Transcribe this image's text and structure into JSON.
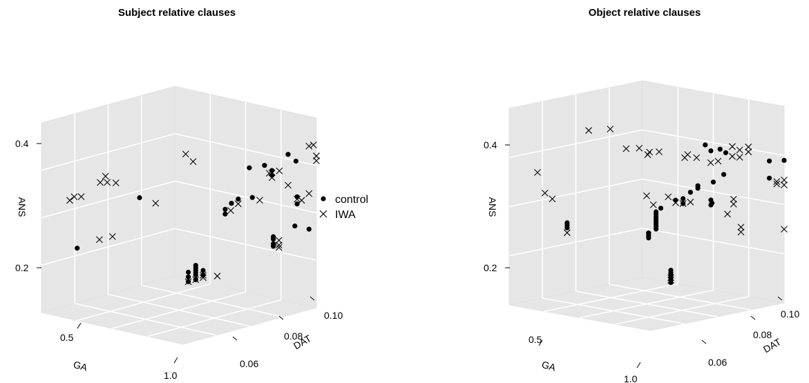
{
  "chart_data": [
    {
      "type": "scatter",
      "title": "Subject relative clauses",
      "xlabel": "GA",
      "ylabel": "DAT",
      "zlabel": "ANS",
      "xlim": [
        0.2,
        1.1
      ],
      "ylim": [
        0.05,
        0.1
      ],
      "zlim": [
        0.1,
        0.5
      ],
      "x_ticks": [
        "0.5",
        "1.0"
      ],
      "y_ticks": [
        "0.06",
        "0.08",
        "0.10"
      ],
      "z_ticks": [
        "0.2",
        "0.4"
      ],
      "grid": true,
      "series": [
        {
          "name": "control",
          "marker": "dot",
          "points": [
            [
              0.25,
              0.06,
              0.245
            ],
            [
              0.48,
              0.07,
              0.345
            ],
            [
              0.75,
              0.1,
              0.43
            ],
            [
              0.8,
              0.092,
              0.41
            ],
            [
              0.8,
              0.1,
              0.415
            ],
            [
              0.8,
              0.1,
              0.405
            ],
            [
              1.0,
              0.09,
              0.245
            ],
            [
              1.0,
              0.09,
              0.23
            ],
            [
              1.0,
              0.09,
              0.225
            ],
            [
              1.0,
              0.09,
              0.24
            ],
            [
              1.05,
              0.095,
              0.27
            ],
            [
              1.05,
              0.1,
              0.27
            ],
            [
              0.97,
              0.1,
              0.33
            ],
            [
              0.97,
              0.1,
              0.345
            ],
            [
              1.0,
              0.073,
              0.27
            ],
            [
              1.0,
              0.073,
              0.28
            ],
            [
              1.05,
              0.075,
              0.3
            ],
            [
              1.05,
              0.08,
              0.31
            ],
            [
              1.05,
              0.06,
              0.11
            ],
            [
              1.05,
              0.06,
              0.12
            ],
            [
              1.05,
              0.06,
              0.125
            ],
            [
              1.05,
              0.06,
              0.13
            ],
            [
              1.05,
              0.06,
              0.135
            ],
            [
              1.0,
              0.06,
              0.11
            ],
            [
              1.0,
              0.06,
              0.12
            ],
            [
              1.0,
              0.06,
              0.13
            ],
            [
              1.1,
              0.06,
              0.115
            ],
            [
              1.1,
              0.06,
              0.125
            ],
            [
              1.1,
              0.07,
              0.28
            ],
            [
              1.1,
              0.09,
              0.41
            ],
            [
              1.0,
              0.098,
              0.415
            ],
            [
              1.05,
              0.06,
              0.14
            ]
          ]
        },
        {
          "name": "IWA",
          "marker": "cross",
          "points": [
            [
              0.2,
              0.06,
              0.35
            ],
            [
              0.22,
              0.063,
              0.36
            ],
            [
              0.23,
              0.06,
              0.355
            ],
            [
              0.25,
              0.07,
              0.41
            ],
            [
              0.3,
              0.068,
              0.39
            ],
            [
              0.32,
              0.07,
              0.39
            ],
            [
              0.31,
              0.065,
              0.385
            ],
            [
              0.4,
              0.06,
              0.25
            ],
            [
              0.45,
              0.062,
              0.255
            ],
            [
              0.6,
              0.08,
              0.44
            ],
            [
              0.65,
              0.08,
              0.42
            ],
            [
              0.55,
              0.072,
              0.33
            ],
            [
              0.8,
              0.1,
              0.41
            ],
            [
              0.85,
              0.1,
              0.41
            ],
            [
              0.82,
              0.098,
              0.405
            ],
            [
              0.8,
              0.1,
              0.4
            ],
            [
              1.0,
              0.092,
              0.24
            ],
            [
              1.0,
              0.092,
              0.23
            ],
            [
              1.0,
              0.092,
              0.225
            ],
            [
              1.05,
              0.1,
              0.445
            ],
            [
              1.08,
              0.1,
              0.445
            ],
            [
              1.1,
              0.1,
              0.42
            ],
            [
              1.1,
              0.1,
              0.42
            ],
            [
              1.1,
              0.1,
              0.41
            ],
            [
              0.97,
              0.1,
              0.34
            ],
            [
              1.0,
              0.1,
              0.335
            ],
            [
              1.05,
              0.1,
              0.345
            ],
            [
              1.1,
              0.09,
              0.345
            ],
            [
              1.0,
              0.075,
              0.28
            ],
            [
              1.05,
              0.075,
              0.29
            ],
            [
              1.1,
              0.08,
              0.3
            ],
            [
              1.1,
              0.06,
              0.11
            ],
            [
              1.1,
              0.06,
              0.115
            ],
            [
              1.05,
              0.06,
              0.11
            ],
            [
              1.0,
              0.06,
              0.11
            ],
            [
              1.1,
              0.065,
              0.12
            ]
          ]
        }
      ]
    },
    {
      "type": "scatter",
      "title": "Object relative clauses",
      "xlabel": "GA",
      "ylabel": "DAT",
      "zlabel": "ANS",
      "xlim": [
        0.2,
        1.1
      ],
      "ylim": [
        0.05,
        0.1
      ],
      "zlim": [
        0.1,
        0.5
      ],
      "x_ticks": [
        "0.5",
        "1.0"
      ],
      "y_ticks": [
        "0.06",
        "0.08",
        "0.10"
      ],
      "z_ticks": [
        "0.2",
        "0.4"
      ],
      "grid": true,
      "series": [
        {
          "name": "control",
          "marker": "dot",
          "points": [
            [
              0.4,
              0.06,
              0.255
            ],
            [
              0.4,
              0.06,
              0.26
            ],
            [
              0.4,
              0.06,
              0.265
            ],
            [
              0.75,
              0.08,
              0.31
            ],
            [
              0.8,
              0.08,
              0.31
            ],
            [
              0.8,
              0.08,
              0.3
            ],
            [
              0.85,
              0.08,
              0.32
            ],
            [
              0.9,
              0.08,
              0.33
            ],
            [
              0.9,
              0.08,
              0.325
            ],
            [
              0.9,
              0.085,
              0.3
            ],
            [
              0.95,
              0.082,
              0.29
            ],
            [
              0.95,
              0.082,
              0.3
            ],
            [
              0.95,
              0.06,
              0.21
            ],
            [
              1.0,
              0.06,
              0.215
            ],
            [
              1.0,
              0.06,
              0.22
            ],
            [
              1.0,
              0.06,
              0.225
            ],
            [
              1.0,
              0.06,
              0.23
            ],
            [
              1.0,
              0.06,
              0.235
            ],
            [
              1.0,
              0.06,
              0.24
            ],
            [
              1.0,
              0.06,
              0.245
            ],
            [
              1.0,
              0.06,
              0.25
            ],
            [
              0.95,
              0.06,
              0.2
            ],
            [
              0.95,
              0.06,
              0.205
            ],
            [
              0.95,
              0.06,
              0.21
            ],
            [
              0.95,
              0.08,
              0.41
            ],
            [
              0.95,
              0.082,
              0.4
            ],
            [
              1.05,
              0.08,
              0.395
            ],
            [
              1.05,
              0.082,
              0.39
            ],
            [
              0.75,
              0.097,
              0.38
            ],
            [
              1.0,
              0.1,
              0.395
            ],
            [
              1.0,
              0.1,
              0.36
            ],
            [
              1.1,
              0.1,
              0.39
            ],
            [
              1.1,
              0.075,
              0.32
            ],
            [
              1.1,
              0.06,
              0.1
            ],
            [
              1.1,
              0.06,
              0.105
            ],
            [
              1.1,
              0.06,
              0.11
            ],
            [
              1.1,
              0.06,
              0.115
            ],
            [
              1.1,
              0.06,
              0.12
            ],
            [
              1.1,
              0.06,
              0.125
            ],
            [
              0.65,
              0.08,
              0.3
            ]
          ]
        },
        {
          "name": "IWA",
          "marker": "cross",
          "points": [
            [
              0.2,
              0.06,
              0.38
            ],
            [
              0.25,
              0.06,
              0.335
            ],
            [
              0.3,
              0.06,
              0.32
            ],
            [
              0.4,
              0.06,
              0.245
            ],
            [
              0.45,
              0.065,
              0.455
            ],
            [
              0.5,
              0.07,
              0.46
            ],
            [
              0.55,
              0.073,
              0.42
            ],
            [
              0.6,
              0.075,
              0.42
            ],
            [
              0.65,
              0.076,
              0.41
            ],
            [
              0.6,
              0.078,
              0.41
            ],
            [
              0.6,
              0.082,
              0.42
            ],
            [
              0.62,
              0.09,
              0.415
            ],
            [
              0.64,
              0.09,
              0.42
            ],
            [
              0.7,
              0.09,
              0.41
            ],
            [
              0.7,
              0.095,
              0.405
            ],
            [
              0.75,
              0.095,
              0.405
            ],
            [
              0.75,
              0.1,
              0.44
            ],
            [
              0.8,
              0.1,
              0.43
            ],
            [
              0.75,
              0.1,
              0.42
            ],
            [
              0.8,
              0.1,
              0.415
            ],
            [
              0.65,
              0.075,
              0.32
            ],
            [
              0.7,
              0.08,
              0.32
            ],
            [
              0.75,
              0.08,
              0.305
            ],
            [
              0.8,
              0.08,
              0.3
            ],
            [
              0.6,
              0.08,
              0.31
            ],
            [
              0.85,
              0.08,
              0.3
            ],
            [
              0.95,
              0.09,
              0.31
            ],
            [
              0.95,
              0.09,
              0.3
            ],
            [
              1.0,
              0.09,
              0.25
            ],
            [
              1.0,
              0.09,
              0.24
            ],
            [
              1.05,
              0.09,
              0.41
            ],
            [
              1.05,
              0.09,
              0.4
            ],
            [
              1.05,
              0.1,
              0.35
            ],
            [
              1.05,
              0.1,
              0.345
            ],
            [
              1.1,
              0.1,
              0.35
            ],
            [
              1.1,
              0.1,
              0.34
            ],
            [
              1.1,
              0.08,
              0.26
            ],
            [
              1.1,
              0.1,
              0.25
            ],
            [
              1.1,
              0.06,
              0.105
            ],
            [
              1.1,
              0.06,
              0.11
            ]
          ]
        }
      ]
    }
  ]
}
